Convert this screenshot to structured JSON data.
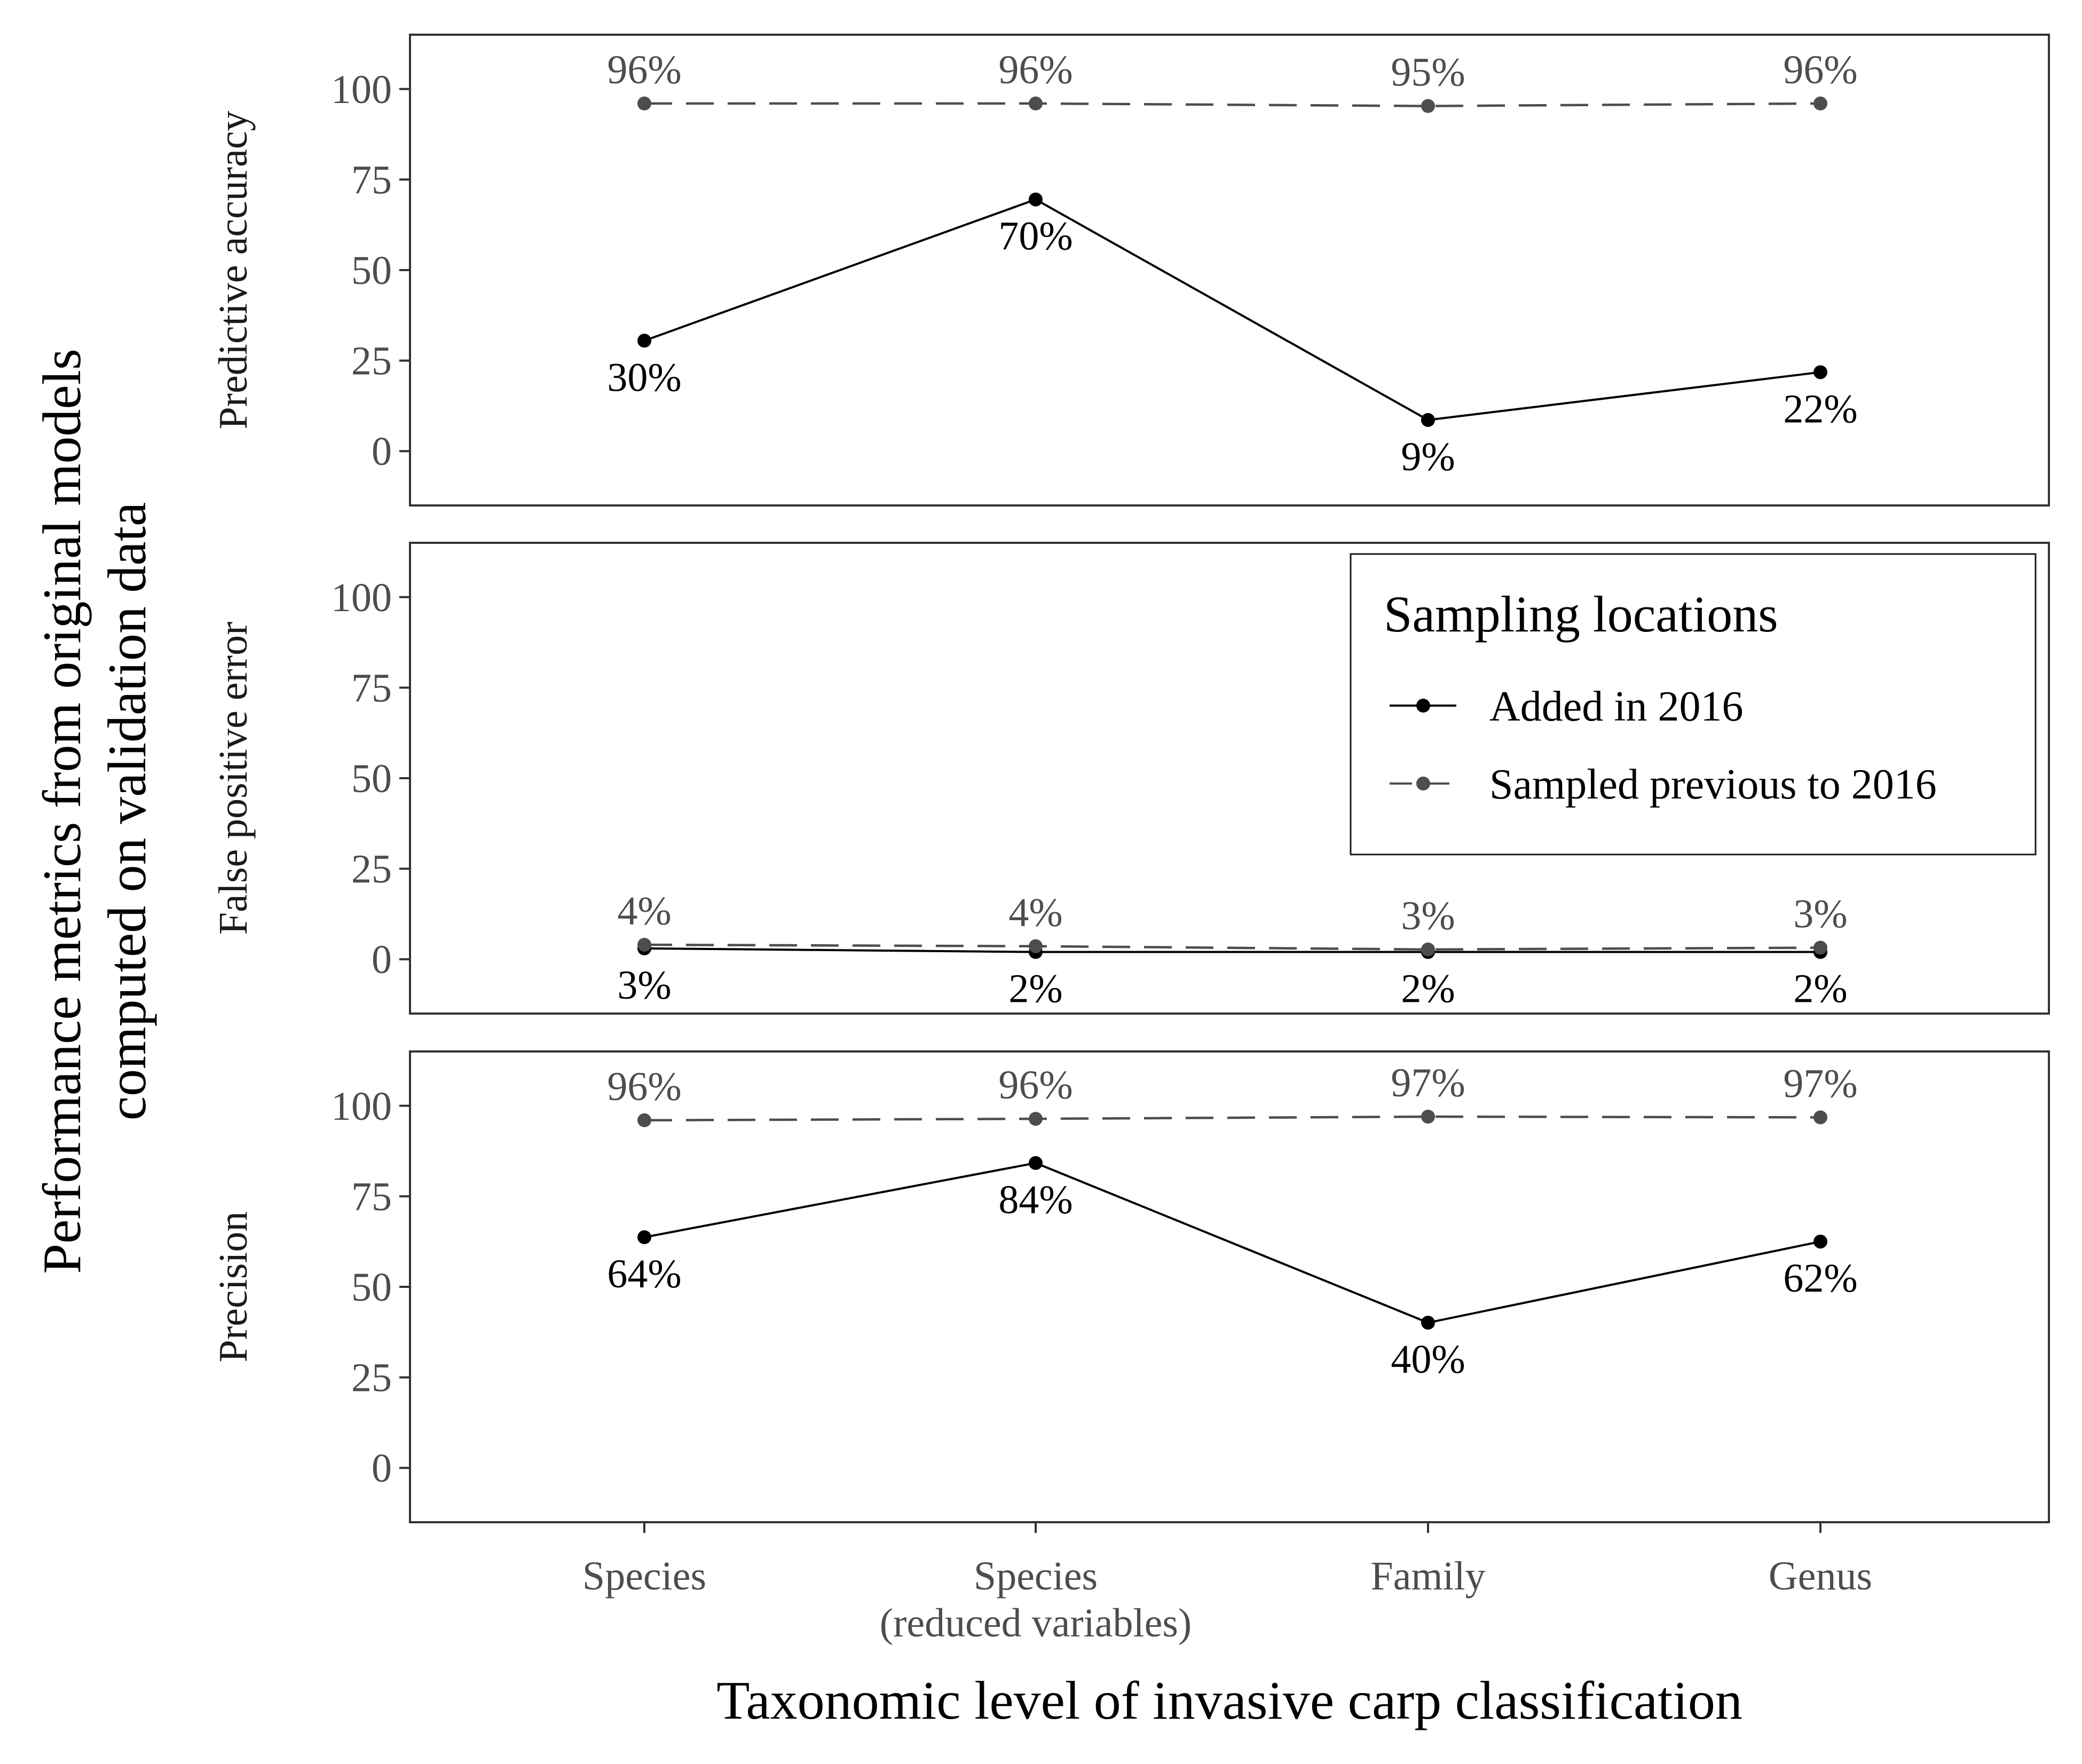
{
  "chart_data": {
    "type": "line",
    "ylabel": "Performance metrics from original models\ncomputed on validation data",
    "xlabel": "Taxonomic level of invasive carp classification",
    "categories": [
      "Species",
      "Species\n(reduced variables)",
      "Family",
      "Genus"
    ],
    "ylim": [
      -15,
      115
    ],
    "yticks": [
      0,
      25,
      50,
      75,
      100
    ],
    "grid": false,
    "legend": {
      "title": "Sampling locations",
      "placement": "inside middle panel, top-right",
      "entries": [
        "Added in 2016",
        "Sampled previous to 2016"
      ]
    },
    "colors": {
      "added": "#000000",
      "previous": "#4d4d4d",
      "axis": "#333333"
    },
    "panels": [
      {
        "label": "Predictive accuracy",
        "series": [
          {
            "name": "Added in 2016",
            "values": [
              30.5,
              69.5,
              8.6,
              21.8
            ],
            "labels": [
              "30%",
              "70%",
              "9%",
              "22%"
            ]
          },
          {
            "name": "Sampled previous to 2016",
            "values": [
              96,
              96,
              95.3,
              96
            ],
            "labels": [
              "96%",
              "96%",
              "95%",
              "96%"
            ]
          }
        ]
      },
      {
        "label": "False positive error",
        "series": [
          {
            "name": "Added in 2016",
            "values": [
              3,
              2,
              2,
              2
            ],
            "labels": [
              "3%",
              "2%",
              "2%",
              "2%"
            ]
          },
          {
            "name": "Sampled previous to 2016",
            "values": [
              4,
              3.6,
              2.7,
              3.2
            ],
            "labels": [
              "4%",
              "4%",
              "3%",
              "3%"
            ]
          }
        ]
      },
      {
        "label": "Precision",
        "series": [
          {
            "name": "Added in 2016",
            "values": [
              63.7,
              84.2,
              40.1,
              62.5
            ],
            "labels": [
              "64%",
              "84%",
              "40%",
              "62%"
            ]
          },
          {
            "name": "Sampled previous to 2016",
            "values": [
              96,
              96.4,
              97,
              96.8
            ],
            "labels": [
              "96%",
              "96%",
              "97%",
              "97%"
            ]
          }
        ]
      }
    ]
  }
}
